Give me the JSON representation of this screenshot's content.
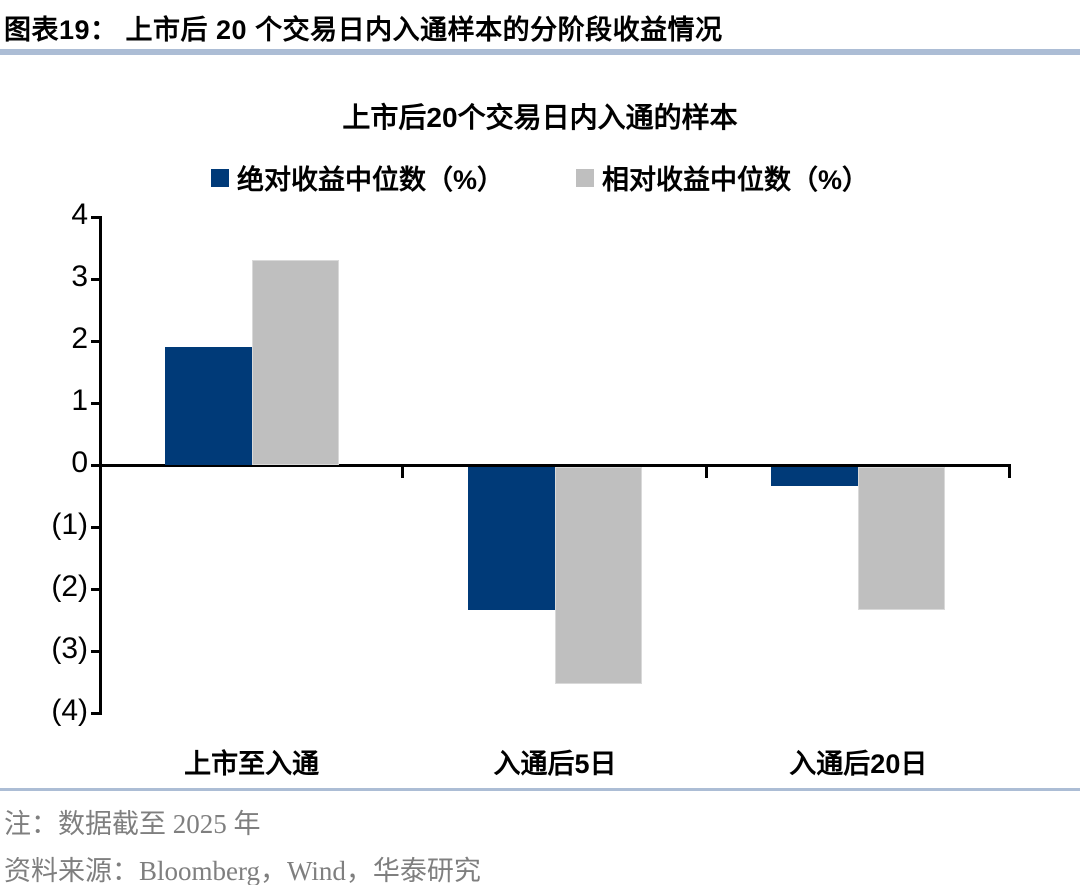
{
  "header": {
    "title": "图表19：  上市后 20 个交易日内入通样本的分阶段收益情况"
  },
  "chart_data": {
    "type": "bar",
    "title": "上市后20个交易日内入通的样本",
    "categories": [
      "上市至入通",
      "入通后5日",
      "入通后20日"
    ],
    "series": [
      {
        "name": "绝对收益中位数（%）",
        "color": "#003A78",
        "values": [
          1.9,
          -2.3,
          -0.3
        ]
      },
      {
        "name": "相对收益中位数（%）",
        "color": "#BFBFBF",
        "values": [
          3.3,
          -3.5,
          -2.3
        ]
      }
    ],
    "ylim": [
      -4,
      4
    ],
    "ytick_step": 1,
    "ytick_labels": [
      "4",
      "3",
      "2",
      "1",
      "0",
      "(1)",
      "(2)",
      "(3)",
      "(4)"
    ],
    "negative_label_format": "parentheses",
    "legend_position": "top",
    "grid": false
  },
  "footer": {
    "note": "注：数据截至 2025 年",
    "source": "资料来源：Bloomberg，Wind，华泰研究"
  },
  "colors": {
    "accent_band": "#ACBDD5",
    "axis": "#000000",
    "bar_absolute": "#003A78",
    "bar_relative": "#BFBFBF",
    "bar_relative_border": "#D9D9D9",
    "footer_text": "#7F7F7F"
  }
}
